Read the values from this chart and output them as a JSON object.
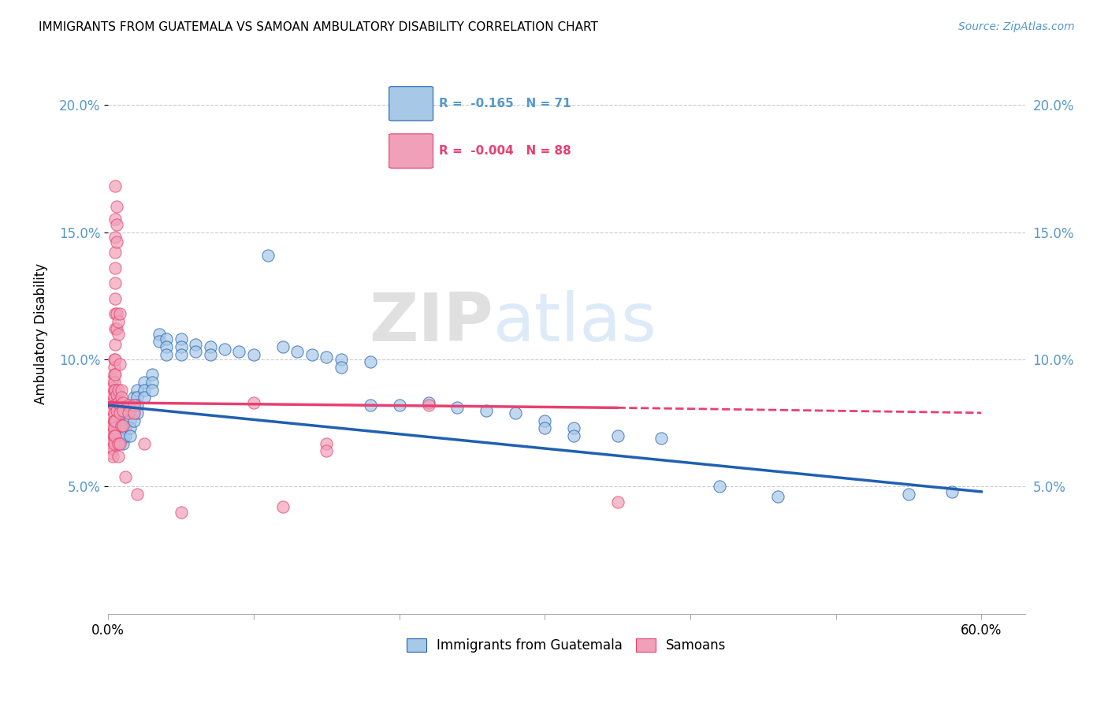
{
  "title": "IMMIGRANTS FROM GUATEMALA VS SAMOAN AMBULATORY DISABILITY CORRELATION CHART",
  "source": "Source: ZipAtlas.com",
  "ylabel": "Ambulatory Disability",
  "xlim": [
    0.0,
    0.63
  ],
  "ylim": [
    0.0,
    0.22
  ],
  "yticks": [
    0.05,
    0.1,
    0.15,
    0.2
  ],
  "ytick_labels": [
    "5.0%",
    "10.0%",
    "15.0%",
    "20.0%"
  ],
  "xticks": [
    0.0,
    0.1,
    0.2,
    0.3,
    0.4,
    0.5,
    0.6
  ],
  "xtick_labels": [
    "0.0%",
    "",
    "",
    "",
    "",
    "",
    "60.0%"
  ],
  "color_blue": "#A8C8E8",
  "color_pink": "#F0A0B8",
  "trendline_blue": "#2060B0",
  "trendline_pink": "#E84070",
  "legend_labels": [
    "Immigrants from Guatemala",
    "Samoans"
  ],
  "blue_scatter": [
    [
      0.003,
      0.073
    ],
    [
      0.004,
      0.071
    ],
    [
      0.005,
      0.072
    ],
    [
      0.005,
      0.069
    ],
    [
      0.006,
      0.074
    ],
    [
      0.007,
      0.075
    ],
    [
      0.007,
      0.072
    ],
    [
      0.007,
      0.078
    ],
    [
      0.008,
      0.076
    ],
    [
      0.009,
      0.073
    ],
    [
      0.009,
      0.07
    ],
    [
      0.009,
      0.068
    ],
    [
      0.01,
      0.077
    ],
    [
      0.01,
      0.074
    ],
    [
      0.01,
      0.071
    ],
    [
      0.01,
      0.069
    ],
    [
      0.01,
      0.067
    ],
    [
      0.012,
      0.079
    ],
    [
      0.012,
      0.076
    ],
    [
      0.012,
      0.073
    ],
    [
      0.012,
      0.07
    ],
    [
      0.015,
      0.082
    ],
    [
      0.015,
      0.079
    ],
    [
      0.015,
      0.076
    ],
    [
      0.015,
      0.073
    ],
    [
      0.015,
      0.07
    ],
    [
      0.018,
      0.085
    ],
    [
      0.018,
      0.082
    ],
    [
      0.018,
      0.079
    ],
    [
      0.018,
      0.076
    ],
    [
      0.02,
      0.088
    ],
    [
      0.02,
      0.085
    ],
    [
      0.02,
      0.082
    ],
    [
      0.02,
      0.079
    ],
    [
      0.025,
      0.091
    ],
    [
      0.025,
      0.088
    ],
    [
      0.025,
      0.085
    ],
    [
      0.03,
      0.094
    ],
    [
      0.03,
      0.091
    ],
    [
      0.03,
      0.088
    ],
    [
      0.035,
      0.11
    ],
    [
      0.035,
      0.107
    ],
    [
      0.04,
      0.108
    ],
    [
      0.04,
      0.105
    ],
    [
      0.04,
      0.102
    ],
    [
      0.05,
      0.108
    ],
    [
      0.05,
      0.105
    ],
    [
      0.05,
      0.102
    ],
    [
      0.06,
      0.106
    ],
    [
      0.06,
      0.103
    ],
    [
      0.07,
      0.105
    ],
    [
      0.07,
      0.102
    ],
    [
      0.08,
      0.104
    ],
    [
      0.09,
      0.103
    ],
    [
      0.1,
      0.102
    ],
    [
      0.11,
      0.141
    ],
    [
      0.12,
      0.105
    ],
    [
      0.13,
      0.103
    ],
    [
      0.14,
      0.102
    ],
    [
      0.15,
      0.101
    ],
    [
      0.16,
      0.1
    ],
    [
      0.16,
      0.097
    ],
    [
      0.18,
      0.099
    ],
    [
      0.18,
      0.082
    ],
    [
      0.2,
      0.082
    ],
    [
      0.22,
      0.083
    ],
    [
      0.24,
      0.081
    ],
    [
      0.26,
      0.08
    ],
    [
      0.28,
      0.079
    ],
    [
      0.3,
      0.076
    ],
    [
      0.3,
      0.073
    ],
    [
      0.32,
      0.073
    ],
    [
      0.32,
      0.07
    ],
    [
      0.35,
      0.07
    ],
    [
      0.38,
      0.069
    ],
    [
      0.42,
      0.05
    ],
    [
      0.46,
      0.046
    ],
    [
      0.55,
      0.047
    ],
    [
      0.58,
      0.048
    ]
  ],
  "pink_scatter": [
    [
      0.002,
      0.075
    ],
    [
      0.002,
      0.073
    ],
    [
      0.002,
      0.071
    ],
    [
      0.002,
      0.069
    ],
    [
      0.002,
      0.067
    ],
    [
      0.002,
      0.065
    ],
    [
      0.002,
      0.063
    ],
    [
      0.003,
      0.092
    ],
    [
      0.003,
      0.089
    ],
    [
      0.003,
      0.086
    ],
    [
      0.003,
      0.083
    ],
    [
      0.003,
      0.08
    ],
    [
      0.003,
      0.077
    ],
    [
      0.003,
      0.074
    ],
    [
      0.003,
      0.071
    ],
    [
      0.003,
      0.068
    ],
    [
      0.003,
      0.065
    ],
    [
      0.003,
      0.062
    ],
    [
      0.004,
      0.1
    ],
    [
      0.004,
      0.097
    ],
    [
      0.004,
      0.094
    ],
    [
      0.004,
      0.091
    ],
    [
      0.004,
      0.088
    ],
    [
      0.004,
      0.085
    ],
    [
      0.004,
      0.082
    ],
    [
      0.004,
      0.079
    ],
    [
      0.004,
      0.076
    ],
    [
      0.004,
      0.073
    ],
    [
      0.004,
      0.07
    ],
    [
      0.004,
      0.067
    ],
    [
      0.005,
      0.168
    ],
    [
      0.005,
      0.155
    ],
    [
      0.005,
      0.148
    ],
    [
      0.005,
      0.142
    ],
    [
      0.005,
      0.136
    ],
    [
      0.005,
      0.13
    ],
    [
      0.005,
      0.124
    ],
    [
      0.005,
      0.118
    ],
    [
      0.005,
      0.112
    ],
    [
      0.005,
      0.106
    ],
    [
      0.005,
      0.1
    ],
    [
      0.005,
      0.094
    ],
    [
      0.005,
      0.088
    ],
    [
      0.005,
      0.082
    ],
    [
      0.005,
      0.076
    ],
    [
      0.005,
      0.07
    ],
    [
      0.006,
      0.16
    ],
    [
      0.006,
      0.153
    ],
    [
      0.006,
      0.146
    ],
    [
      0.006,
      0.118
    ],
    [
      0.006,
      0.112
    ],
    [
      0.006,
      0.086
    ],
    [
      0.006,
      0.08
    ],
    [
      0.007,
      0.115
    ],
    [
      0.007,
      0.11
    ],
    [
      0.007,
      0.088
    ],
    [
      0.007,
      0.083
    ],
    [
      0.007,
      0.067
    ],
    [
      0.007,
      0.062
    ],
    [
      0.008,
      0.118
    ],
    [
      0.008,
      0.098
    ],
    [
      0.008,
      0.082
    ],
    [
      0.008,
      0.079
    ],
    [
      0.008,
      0.067
    ],
    [
      0.009,
      0.088
    ],
    [
      0.009,
      0.085
    ],
    [
      0.009,
      0.074
    ],
    [
      0.01,
      0.083
    ],
    [
      0.01,
      0.08
    ],
    [
      0.01,
      0.074
    ],
    [
      0.012,
      0.054
    ],
    [
      0.014,
      0.082
    ],
    [
      0.014,
      0.079
    ],
    [
      0.018,
      0.082
    ],
    [
      0.018,
      0.079
    ],
    [
      0.02,
      0.047
    ],
    [
      0.025,
      0.067
    ],
    [
      0.05,
      0.04
    ],
    [
      0.1,
      0.083
    ],
    [
      0.12,
      0.042
    ],
    [
      0.15,
      0.067
    ],
    [
      0.15,
      0.064
    ],
    [
      0.22,
      0.082
    ],
    [
      0.35,
      0.044
    ]
  ]
}
